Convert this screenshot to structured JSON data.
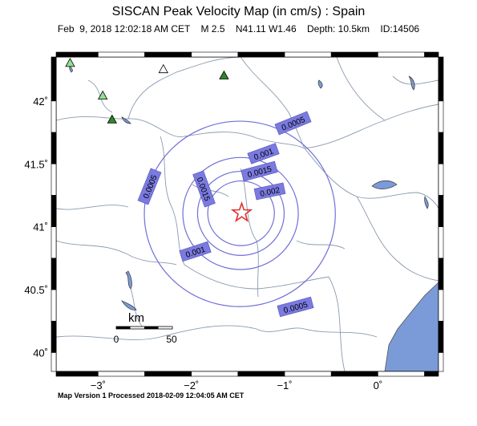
{
  "title": "SISCAN Peak Velocity Map (in cm/s) : Spain",
  "subtitle": "Feb  9, 2018 12:02:18 AM CET    M 2.5    N41.11 W1.46    Depth: 10.5km    ID:14506",
  "footer": "Map Version 1 Processed 2018-02-09 12:04:05 AM CET",
  "map": {
    "lon_range": [
      -3.45,
      0.65
    ],
    "lat_range": [
      39.85,
      42.35
    ],
    "epicenter": {
      "lat": 41.11,
      "lon": -1.46,
      "symbol": "star-icon",
      "color": "#e03030"
    },
    "y_ticks": [
      {
        "lat": 42.0,
        "label": "42˚"
      },
      {
        "lat": 41.5,
        "label": "41.5˚"
      },
      {
        "lat": 41.0,
        "label": "41˚"
      },
      {
        "lat": 40.5,
        "label": "40.5˚"
      },
      {
        "lat": 40.0,
        "label": "40˚"
      }
    ],
    "x_ticks": [
      {
        "lon": -3,
        "label": "−3˚"
      },
      {
        "lon": -2,
        "label": "−2˚"
      },
      {
        "lon": -1,
        "label": "−1˚"
      },
      {
        "lon": 0,
        "label": "0˚"
      }
    ],
    "contours": [
      {
        "value": 0.0005,
        "radius_km": 86,
        "labels": [
          "0.0005",
          "0.0005",
          "0.0005"
        ]
      },
      {
        "value": 0.001,
        "radius_km": 52,
        "labels": [
          "0.001",
          "0.001"
        ]
      },
      {
        "value": 0.0015,
        "radius_km": 39,
        "labels": [
          "0.0015",
          "0.0015"
        ]
      },
      {
        "value": 0.002,
        "radius_km": 30,
        "labels": [
          "0.002"
        ]
      }
    ],
    "stations": [
      {
        "lat": 42.3,
        "lon": -3.3,
        "color": "#90e090"
      },
      {
        "lat": 42.04,
        "lon": -2.95,
        "color": "#90e090"
      },
      {
        "lat": 42.25,
        "lon": -2.3,
        "color": "#ffffff"
      },
      {
        "lat": 42.2,
        "lon": -1.65,
        "color": "#2a8a2a"
      },
      {
        "lat": 41.85,
        "lon": -2.85,
        "color": "#2a8a2a"
      }
    ],
    "scale_bar": {
      "unit": "km",
      "min_label": "0",
      "max_label": "50"
    },
    "colors": {
      "contour": "#7070d8",
      "label_box": "#7a7ae0",
      "sea": "#7b9ad8",
      "rivers": "#8a9ab0"
    }
  }
}
